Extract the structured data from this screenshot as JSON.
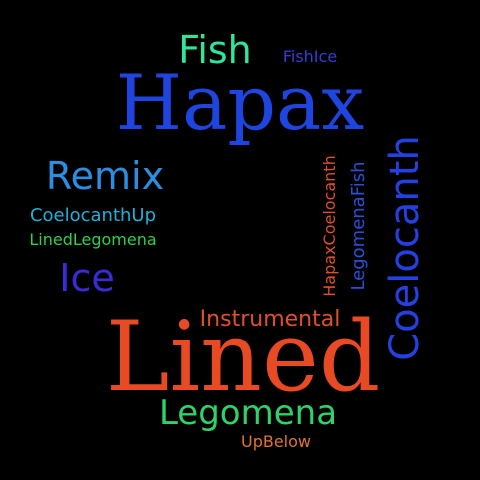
{
  "words": {
    "fish": {
      "text": "Fish",
      "color": "#2ee59a"
    },
    "fishice": {
      "text": "FishIce",
      "color": "#3a3ad8"
    },
    "hapax": {
      "text": "Hapax",
      "color": "#1f45e0"
    },
    "remix": {
      "text": "Remix",
      "color": "#2b8ee0"
    },
    "coelocanthup": {
      "text": "CoelocanthUp",
      "color": "#1fb0d8"
    },
    "linedlegomena": {
      "text": "LinedLegomena",
      "color": "#2ed14a"
    },
    "ice": {
      "text": "Ice",
      "color": "#3a2bd8"
    },
    "instrumental": {
      "text": "Instrumental",
      "color": "#e0502b"
    },
    "lined": {
      "text": "Lined",
      "color": "#e84a24"
    },
    "legomena": {
      "text": "Legomena",
      "color": "#2ed16a"
    },
    "upbelow": {
      "text": "UpBelow",
      "color": "#e0742b"
    },
    "hapaxcoelocanth": {
      "text": "HapaxCoelocanth",
      "color": "#e0502b"
    },
    "legomenafish": {
      "text": "LegomenaFish",
      "color": "#2b50d8"
    },
    "coelocanth": {
      "text": "Coelocanth",
      "color": "#2540e0"
    }
  }
}
